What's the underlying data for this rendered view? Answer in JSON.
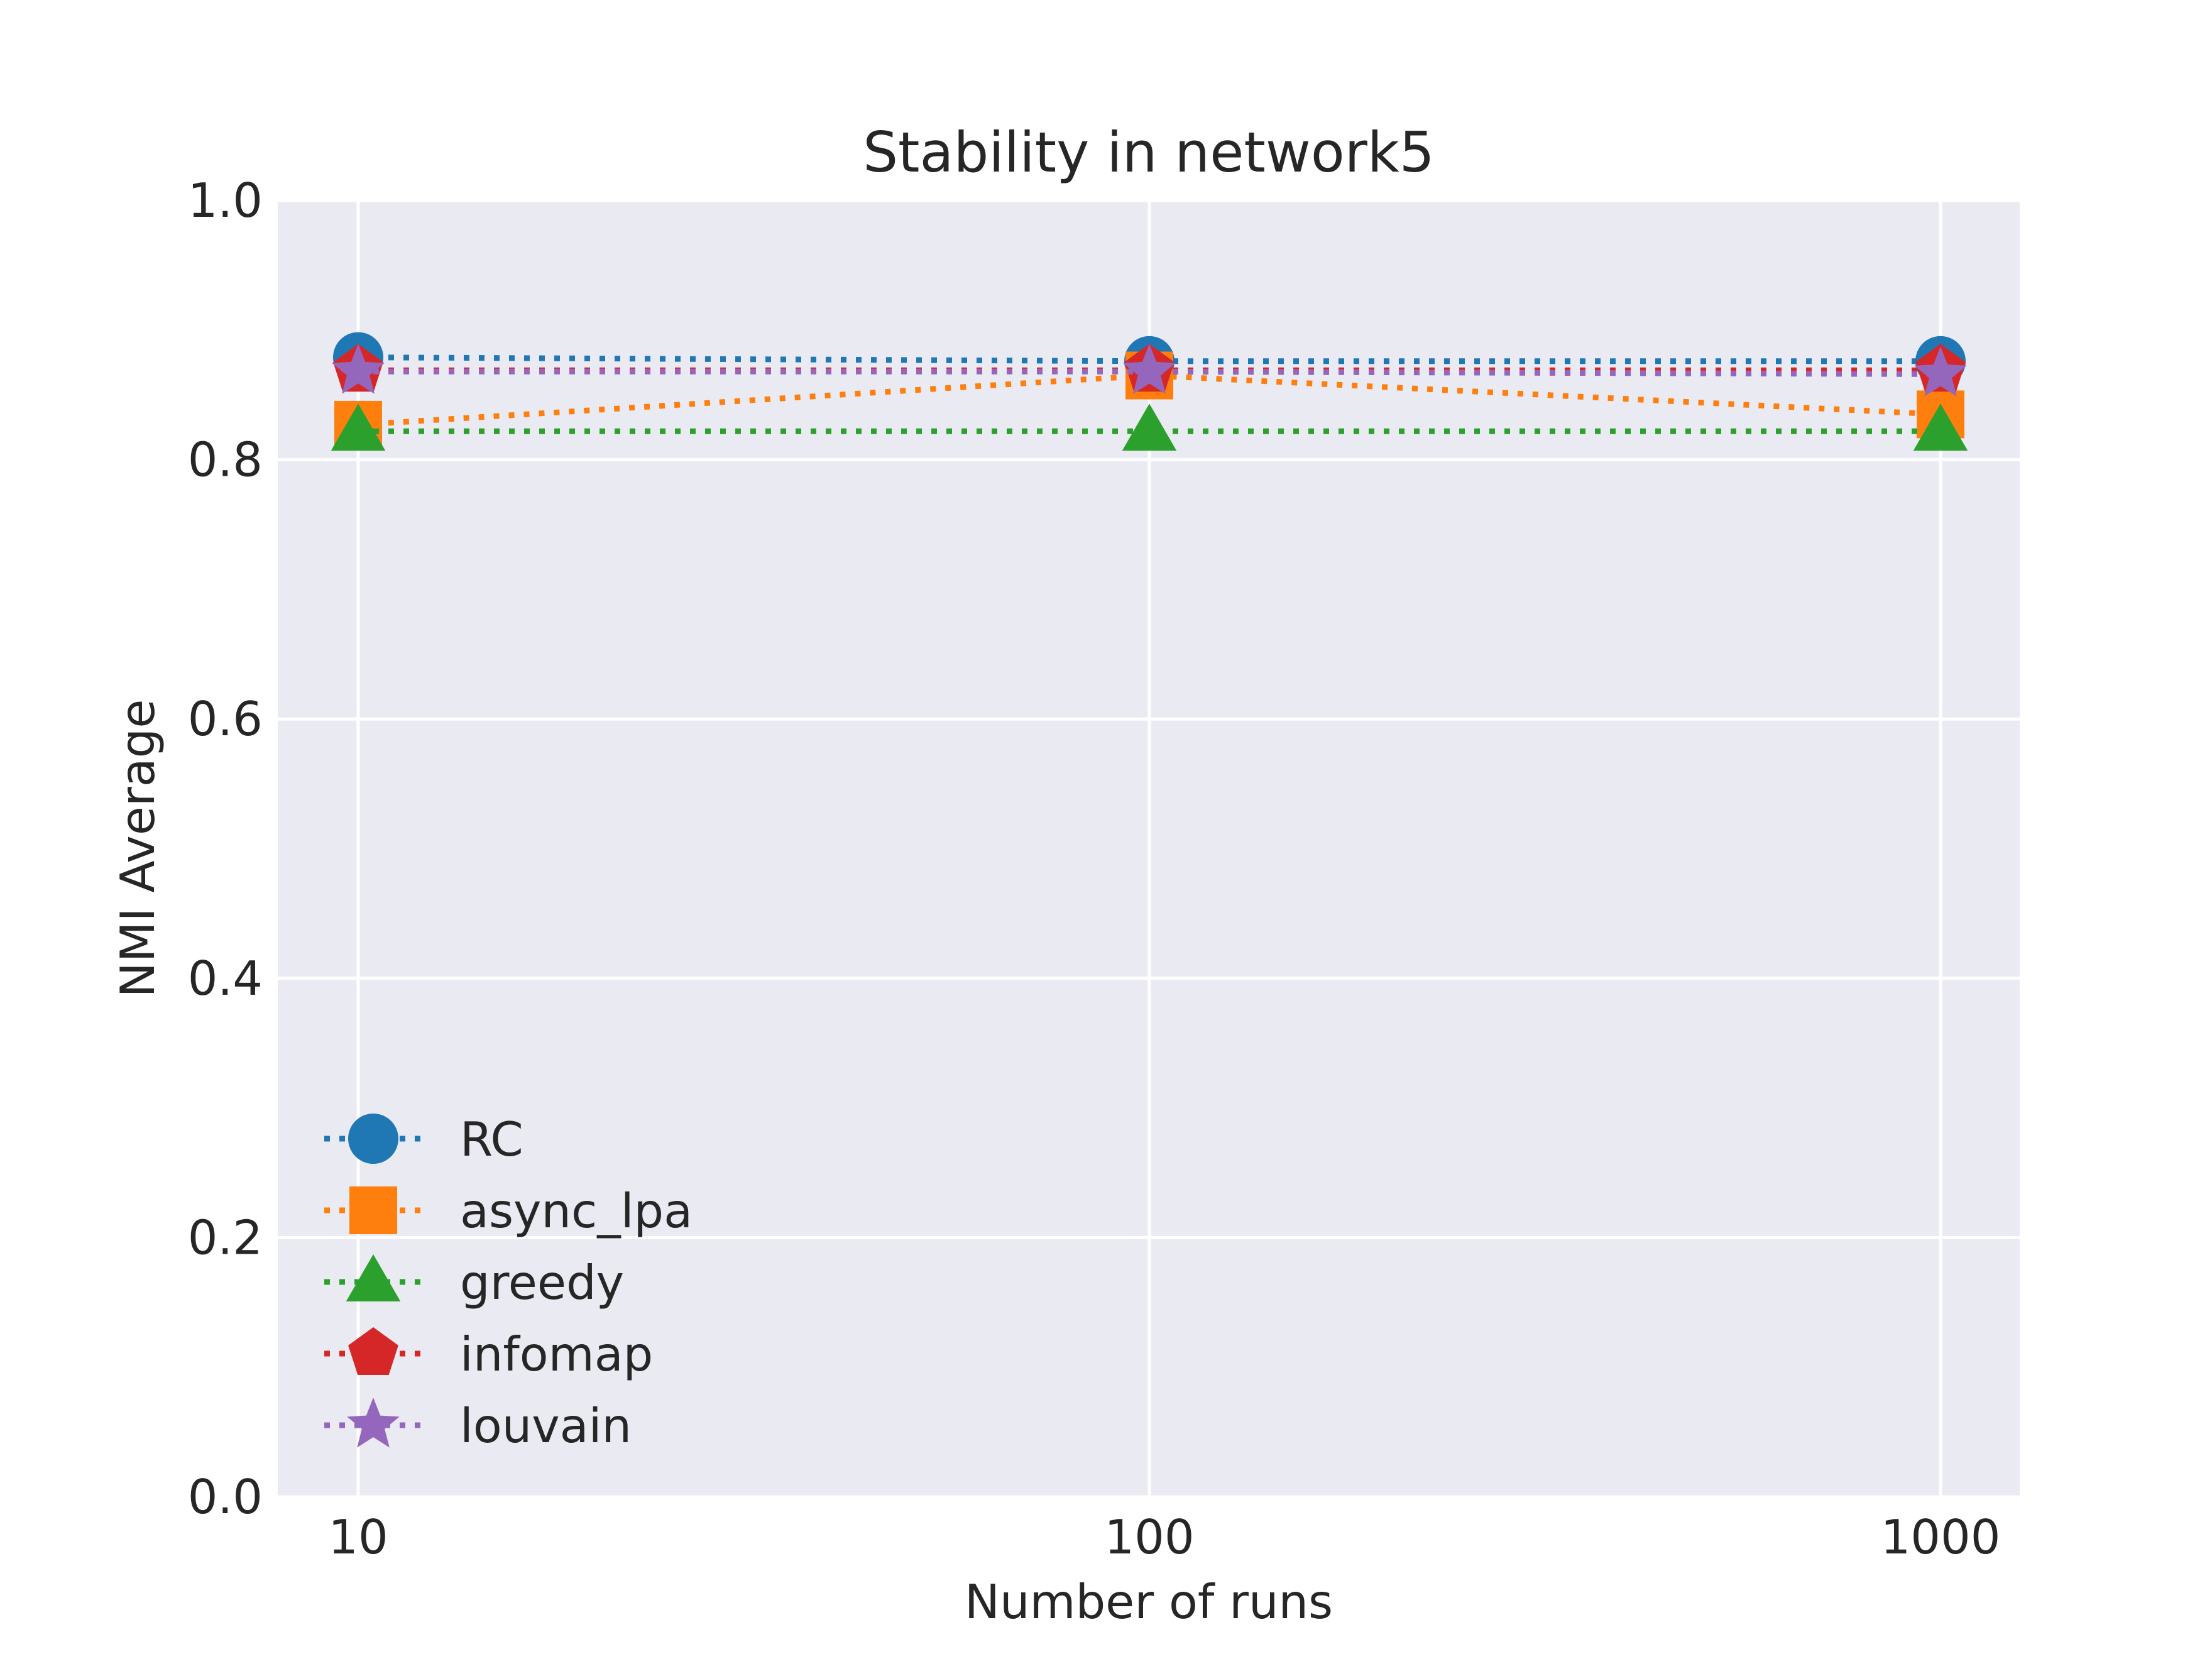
{
  "chart_data": {
    "type": "line",
    "title": "Stability in network5",
    "xlabel": "Number of runs",
    "ylabel": "NMI Average",
    "x": [
      10,
      100,
      1000
    ],
    "x_scale": "log",
    "xticks": [
      "10",
      "100",
      "1000"
    ],
    "ylim": [
      0.0,
      1.0
    ],
    "yticks": [
      "0.0",
      "0.2",
      "0.4",
      "0.6",
      "0.8",
      "1.0"
    ],
    "grid": true,
    "legend_position": "lower-left",
    "series": [
      {
        "name": "RC",
        "values": [
          0.879,
          0.876,
          0.876
        ],
        "color": "#1f77b4",
        "marker": "circle"
      },
      {
        "name": "async_lpa",
        "values": [
          0.827,
          0.865,
          0.835
        ],
        "color": "#ff7f0e",
        "marker": "square"
      },
      {
        "name": "greedy",
        "values": [
          0.822,
          0.822,
          0.822
        ],
        "color": "#2ca02c",
        "marker": "triangle"
      },
      {
        "name": "infomap",
        "values": [
          0.869,
          0.869,
          0.869
        ],
        "color": "#d62728",
        "marker": "pentagon"
      },
      {
        "name": "louvain",
        "values": [
          0.868,
          0.868,
          0.866
        ],
        "color": "#9467bd",
        "marker": "star"
      }
    ]
  }
}
